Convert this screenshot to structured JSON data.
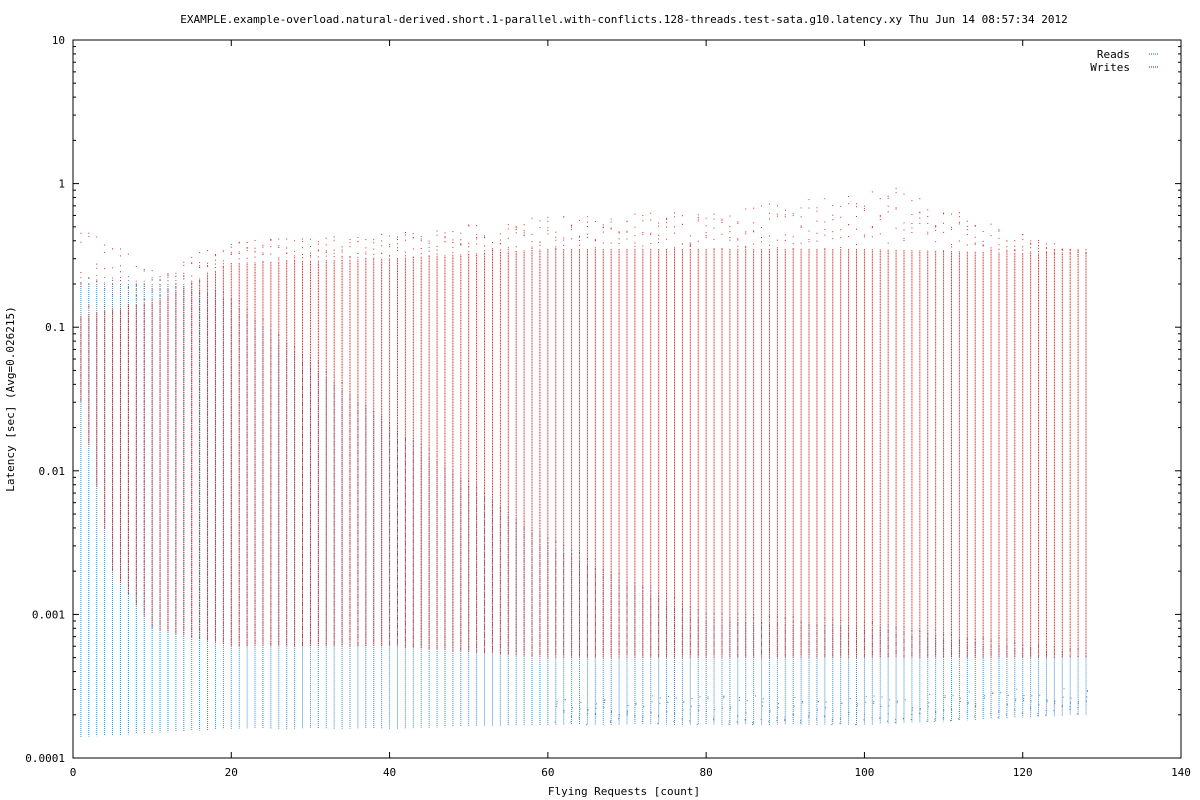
{
  "chart_data": {
    "type": "scatter",
    "title": "EXAMPLE.example-overload.natural-derived.short.1-parallel.with-conflicts.128-threads.test-sata.g10.latency.xy Thu Jun 14 08:57:34 2012",
    "xlabel": "Flying Requests [count]",
    "ylabel": "Latency [sec]  (Avg=0.026215)",
    "xlim": [
      0,
      140
    ],
    "ylim": [
      0.0001,
      10
    ],
    "yscale": "log",
    "xticks": [
      0,
      20,
      40,
      60,
      80,
      100,
      120,
      140
    ],
    "xtick_labels": [
      "0",
      "20",
      "40",
      "60",
      "80",
      "100",
      "120",
      "140"
    ],
    "yticks": [
      0.0001,
      0.001,
      0.01,
      0.1,
      1,
      10
    ],
    "ytick_labels": [
      "0.0001",
      "0.001",
      "0.01",
      "0.1",
      "1",
      "10"
    ],
    "grid": false,
    "legend_position": "top-right",
    "series": [
      {
        "name": "Reads",
        "color": "#3a87c8",
        "x_range": [
          1,
          128
        ],
        "x_step": 1,
        "approx_min_latency": [
          [
            1,
            0.00014
          ],
          [
            20,
            0.00016
          ],
          [
            40,
            0.00016
          ],
          [
            60,
            0.00017
          ],
          [
            80,
            0.00017
          ],
          [
            100,
            0.00017
          ],
          [
            110,
            0.00018
          ],
          [
            128,
            0.0002
          ]
        ],
        "approx_max_latency": [
          [
            1,
            0.2
          ],
          [
            10,
            0.2
          ],
          [
            14,
            0.2
          ],
          [
            20,
            0.15
          ],
          [
            40,
            0.02
          ],
          [
            60,
            0.003
          ],
          [
            80,
            0.0009
          ],
          [
            100,
            0.0008
          ],
          [
            128,
            0.0005
          ]
        ]
      },
      {
        "name": "Writes",
        "color": "#d42a2a",
        "x_range": [
          1,
          128
        ],
        "x_step": 1,
        "approx_min_latency": [
          [
            1,
            0.03
          ],
          [
            5,
            0.002
          ],
          [
            10,
            0.0008
          ],
          [
            20,
            0.0006
          ],
          [
            40,
            0.0006
          ],
          [
            60,
            0.0005
          ],
          [
            80,
            0.0005
          ],
          [
            100,
            0.0005
          ],
          [
            128,
            0.0005
          ]
        ],
        "approx_max_latency": [
          [
            1,
            0.12
          ],
          [
            10,
            0.15
          ],
          [
            20,
            0.28
          ],
          [
            40,
            0.3
          ],
          [
            60,
            0.35
          ],
          [
            80,
            0.35
          ],
          [
            100,
            0.35
          ],
          [
            128,
            0.32
          ]
        ],
        "approx_outlier_max_latency": [
          [
            1,
            0.55
          ],
          [
            10,
            0.25
          ],
          [
            20,
            0.4
          ],
          [
            40,
            0.45
          ],
          [
            60,
            0.6
          ],
          [
            80,
            0.65
          ],
          [
            95,
            0.8
          ],
          [
            103,
            1.0
          ],
          [
            110,
            0.7
          ],
          [
            126,
            0.35
          ]
        ]
      }
    ]
  }
}
